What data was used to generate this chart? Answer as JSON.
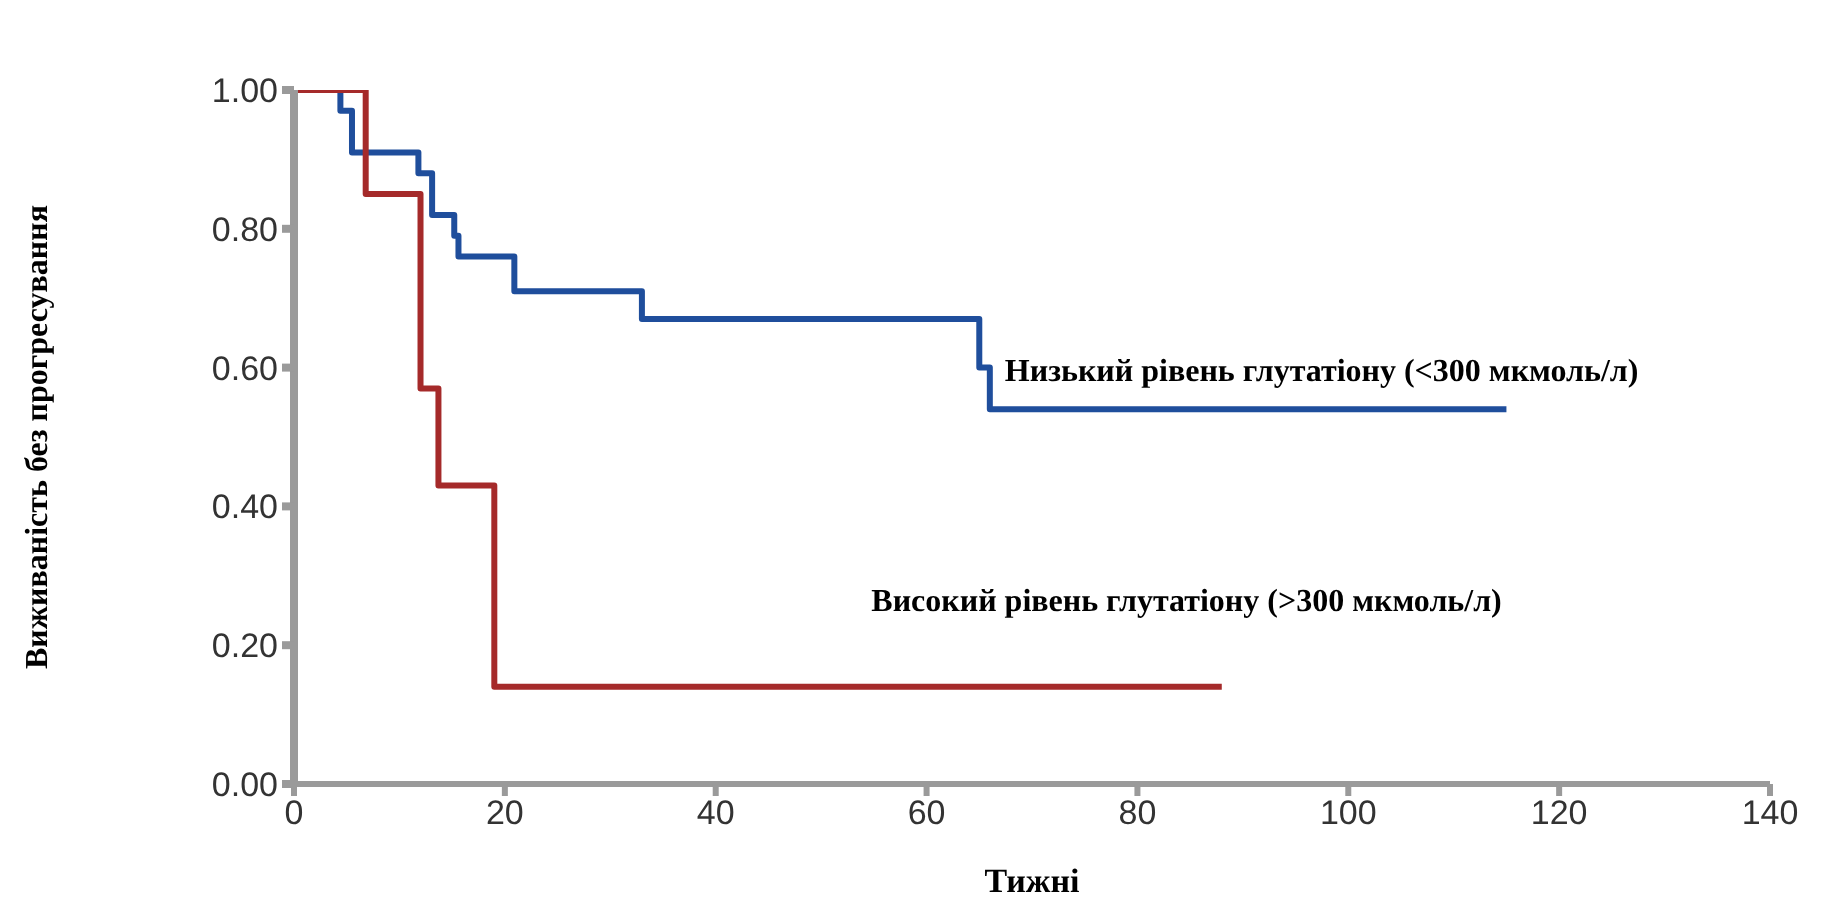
{
  "chart_data": {
    "type": "step",
    "xlabel": "Тижні",
    "ylabel": "Виживаність без прогресування",
    "xlim": [
      0,
      140
    ],
    "xticks": [
      0,
      20,
      40,
      60,
      80,
      100,
      120,
      140
    ],
    "ylim": [
      0,
      1
    ],
    "yticks": [
      {
        "value": 0,
        "label": "0.00"
      },
      {
        "value": 0.2,
        "label": "0.20"
      },
      {
        "value": 0.4,
        "label": "0.40"
      },
      {
        "value": 0.6,
        "label": "0.60"
      },
      {
        "value": 0.8,
        "label": "0.80"
      },
      {
        "value": 1,
        "label": "1.00"
      }
    ],
    "grid": false,
    "legend": false,
    "marker": "none",
    "series": [
      {
        "name": "Низький рівень глутатіону (<300 мкмоль/л)",
        "color": "#1f4e9c",
        "x": [
          0,
          4.4,
          5.5,
          11.8,
          13.1,
          15.2,
          15.6,
          20.9,
          33,
          65,
          66,
          115
        ],
        "values": [
          1,
          0.97,
          0.91,
          0.88,
          0.82,
          0.79,
          0.76,
          0.71,
          0.67,
          0.6,
          0.54,
          0.54
        ]
      },
      {
        "name": "Високий рівень глутатіону (>300 мкмоль/л)",
        "color": "#a52a2a",
        "x": [
          0,
          6.8,
          12,
          13.7,
          19,
          88
        ],
        "values": [
          1,
          0.85,
          0.57,
          0.43,
          0.14,
          0.14
        ]
      }
    ]
  }
}
